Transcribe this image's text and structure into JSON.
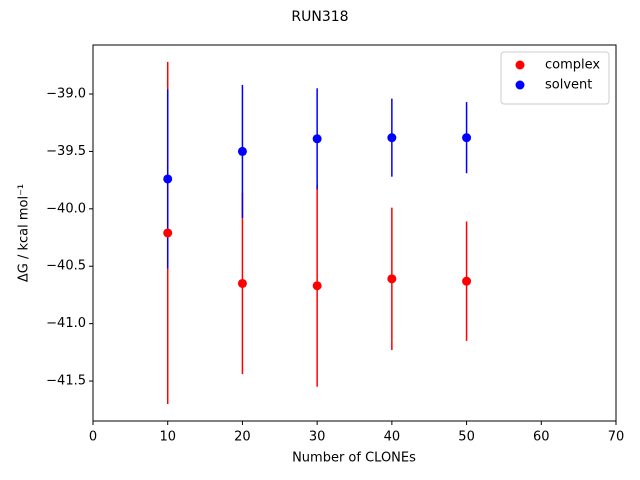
{
  "chart_data": {
    "type": "errorbar",
    "title": "RUN318",
    "x_label": "Number of CLONEs",
    "y_label": "ΔG / kcal mol⁻¹",
    "x": [
      10,
      20,
      30,
      40,
      50
    ],
    "series": [
      {
        "name": "complex",
        "color": "#ff0000",
        "values": [
          -40.21,
          -40.65,
          -40.67,
          -40.61,
          -40.63
        ],
        "errors": [
          1.49,
          0.79,
          0.88,
          0.62,
          0.52
        ]
      },
      {
        "name": "solvent",
        "color": "#0000ff",
        "values": [
          -39.74,
          -39.5,
          -39.39,
          -39.38,
          -39.38
        ],
        "errors": [
          0.78,
          0.58,
          0.44,
          0.34,
          0.31
        ]
      }
    ],
    "xlim": [
      0,
      70
    ],
    "xticks": [
      0,
      10,
      20,
      30,
      40,
      50,
      60,
      70
    ],
    "ylim": [
      -41.848,
      -38.573
    ],
    "yticks": [
      {
        "value": -41.5,
        "label": "−41.5"
      },
      {
        "value": -41.0,
        "label": "−41.0"
      },
      {
        "value": -40.5,
        "label": "−40.5"
      },
      {
        "value": -40.0,
        "label": "−40.0"
      },
      {
        "value": -39.5,
        "label": "−39.5"
      },
      {
        "value": -39.0,
        "label": "−39.0"
      }
    ],
    "legend_position": "upper right"
  }
}
